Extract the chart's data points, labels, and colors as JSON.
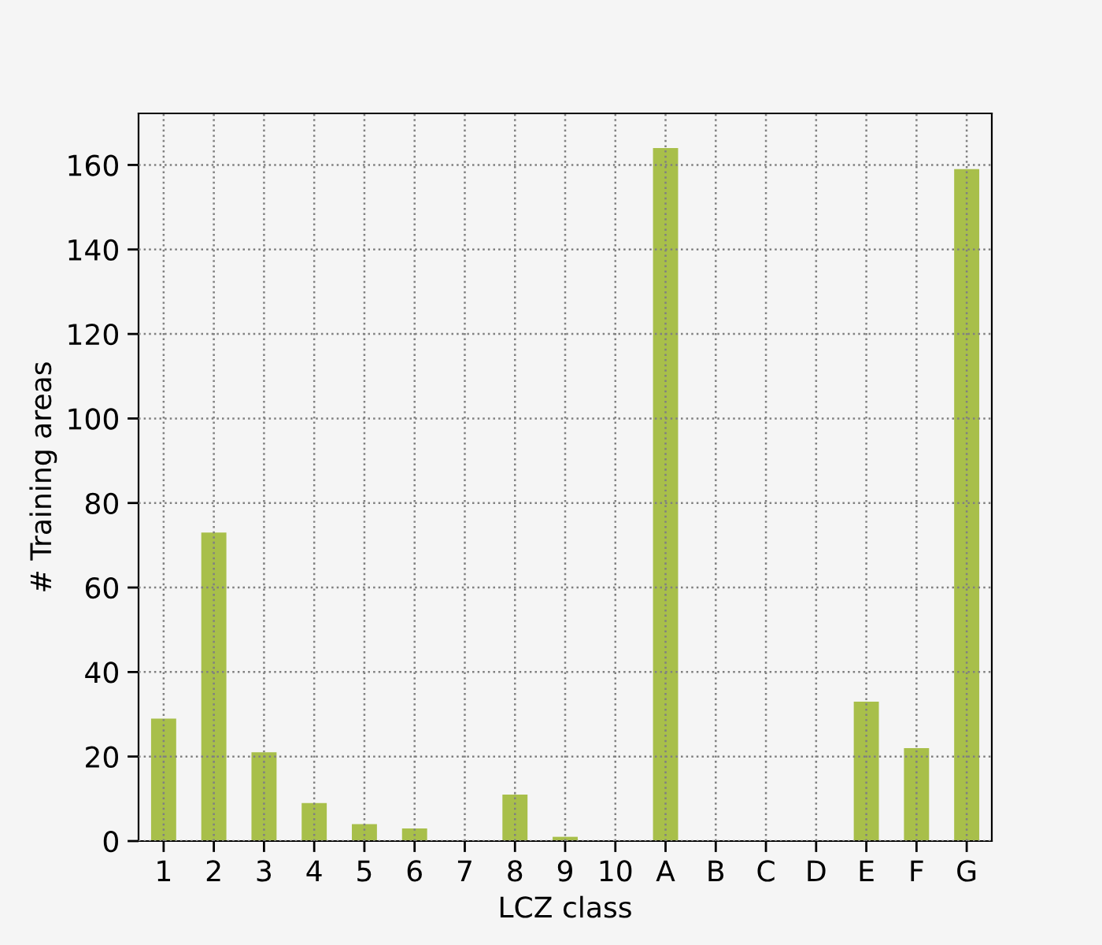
{
  "chart_data": {
    "type": "bar",
    "xlabel": "LCZ class",
    "ylabel": "# Training areas",
    "categories": [
      "1",
      "2",
      "3",
      "4",
      "5",
      "6",
      "7",
      "8",
      "9",
      "10",
      "A",
      "B",
      "C",
      "D",
      "E",
      "F",
      "G"
    ],
    "values": [
      29,
      73,
      21,
      9,
      4,
      3,
      0,
      11,
      1,
      0,
      164,
      0,
      0,
      0,
      33,
      22,
      159
    ],
    "color": "#a8bf4a",
    "ylim": [
      0,
      172.2
    ],
    "yticks": [
      0,
      20,
      40,
      60,
      80,
      100,
      120,
      140,
      160
    ],
    "grid": true,
    "line_style": "dotted"
  }
}
